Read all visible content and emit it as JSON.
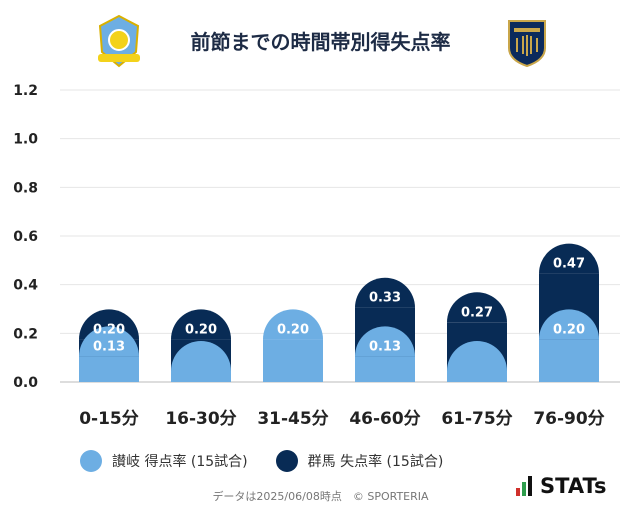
{
  "title": "前節までの時間帯別得失点率",
  "chart_data": {
    "type": "bar",
    "categories": [
      "0-15分",
      "16-30分",
      "31-45分",
      "46-60分",
      "61-75分",
      "76-90分"
    ],
    "ylim": [
      0,
      1.2
    ],
    "yticks": [
      "0.0",
      "0.2",
      "0.4",
      "0.6",
      "0.8",
      "1.0",
      "1.2"
    ],
    "grid": true,
    "series": [
      {
        "name": "讃岐 得点率 (15試合)",
        "color": "#6daee3",
        "values": [
          0.13,
          0.07,
          0.2,
          0.13,
          0.07,
          0.2
        ],
        "labels": [
          "0.13",
          "",
          "0.20",
          "0.13",
          "",
          "0.20"
        ]
      },
      {
        "name": "群馬 失点率 (15試合)",
        "color": "#082b55",
        "values": [
          0.2,
          0.2,
          0.07,
          0.33,
          0.27,
          0.47
        ],
        "labels": [
          "0.20",
          "0.20",
          "",
          "0.33",
          "0.27",
          "0.47"
        ]
      }
    ]
  },
  "footer": "データは2025/06/08時点　© SPORTERIA",
  "brand": "STATs"
}
